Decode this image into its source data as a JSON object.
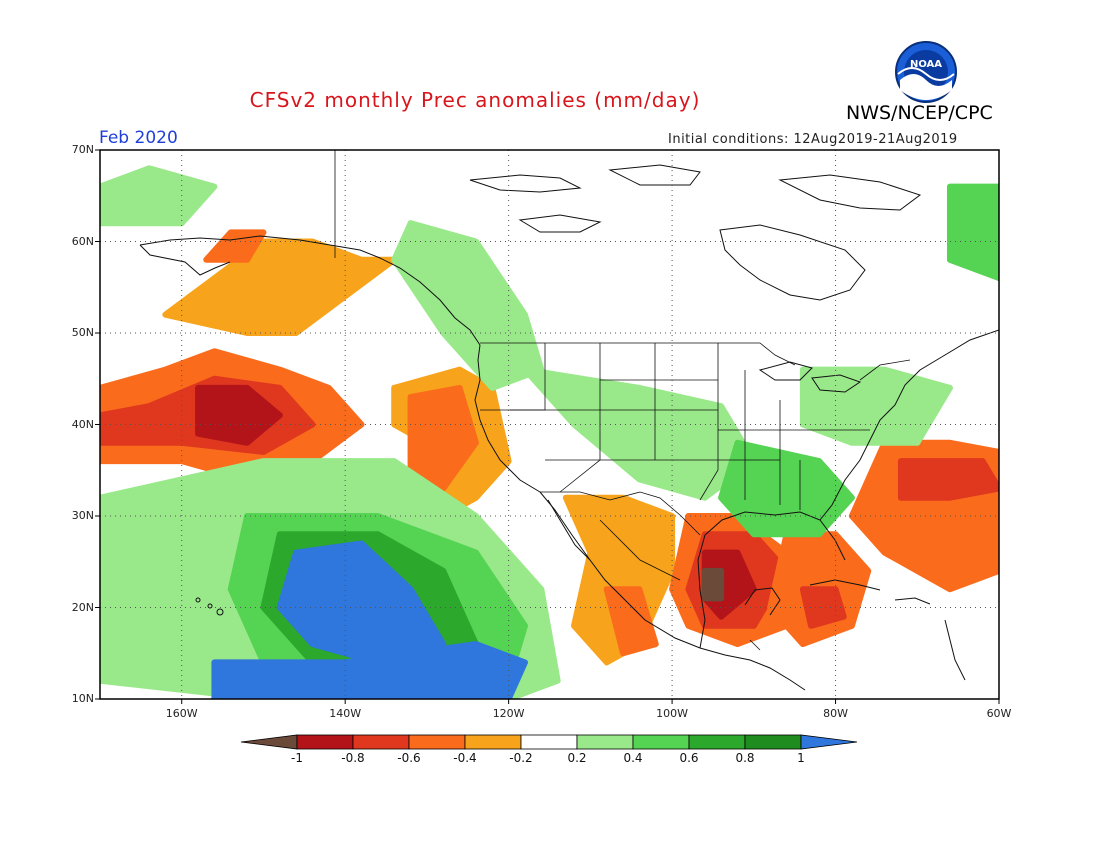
{
  "title": "CFSv2 monthly Prec anomalies (mm/day)",
  "agency": "NWS/NCEP/CPC",
  "logo_text": "NOAA",
  "month_label": "Feb 2020",
  "initial_conditions": "Initial conditions: 12Aug2019-21Aug2019",
  "lat_labels": [
    "70N",
    "60N",
    "50N",
    "40N",
    "30N",
    "20N",
    "10N"
  ],
  "lon_labels": [
    "160W",
    "140W",
    "120W",
    "100W",
    "80W",
    "60W"
  ],
  "colorbar": {
    "labels": [
      "-1",
      "-0.8",
      "-0.6",
      "-0.4",
      "-0.2",
      "0.2",
      "0.4",
      "0.6",
      "0.8",
      "1"
    ],
    "colors": [
      "#6b4a3a",
      "#b2141a",
      "#e0371f",
      "#fa6b1c",
      "#f7a41c",
      "#ffffff",
      "#99e98a",
      "#55d352",
      "#2ca82c",
      "#1e8c1e",
      "#2f76dd"
    ]
  },
  "map": {
    "lon_range": [
      -170,
      -60
    ],
    "lat_range": [
      10,
      70
    ],
    "patches": [
      {
        "bin": "-0.6",
        "color": "#fa6b1c",
        "region": "NE Pacific",
        "poly": [
          [
            -170,
            44
          ],
          [
            -162,
            46
          ],
          [
            -156,
            48
          ],
          [
            -148,
            46
          ],
          [
            -142,
            44
          ],
          [
            -138,
            40
          ],
          [
            -144,
            36
          ],
          [
            -152,
            34
          ],
          [
            -160,
            36
          ],
          [
            -170,
            36
          ]
        ]
      },
      {
        "bin": "-0.8",
        "color": "#e0371f",
        "region": "NE Pacific core",
        "poly": [
          [
            -164,
            42
          ],
          [
            -156,
            45
          ],
          [
            -148,
            44
          ],
          [
            -144,
            40
          ],
          [
            -150,
            37
          ],
          [
            -160,
            38
          ],
          [
            -170,
            38
          ],
          [
            -170,
            41
          ]
        ]
      },
      {
        "bin": "-1",
        "color": "#b2141a",
        "region": "NE Pacific center",
        "poly": [
          [
            -158,
            44
          ],
          [
            -152,
            44
          ],
          [
            -148,
            41
          ],
          [
            -152,
            38
          ],
          [
            -158,
            39
          ]
        ]
      },
      {
        "bin": "-0.4",
        "color": "#f7a41c",
        "region": "Gulf of Alaska",
        "poly": [
          [
            -162,
            52
          ],
          [
            -156,
            56
          ],
          [
            -150,
            60
          ],
          [
            -144,
            60
          ],
          [
            -138,
            58
          ],
          [
            -134,
            58
          ],
          [
            -140,
            54
          ],
          [
            -146,
            50
          ],
          [
            -152,
            50
          ]
        ]
      },
      {
        "bin": "-0.6",
        "color": "#fa6b1c",
        "region": "Alaska Peninsula",
        "poly": [
          [
            -157,
            58
          ],
          [
            -154,
            61
          ],
          [
            -150,
            61
          ],
          [
            -152,
            58
          ]
        ]
      },
      {
        "bin": "-0.4",
        "color": "#f7a41c",
        "region": "California coast",
        "poly": [
          [
            -134,
            44
          ],
          [
            -126,
            46
          ],
          [
            -122,
            44
          ],
          [
            -120,
            36
          ],
          [
            -124,
            32
          ],
          [
            -128,
            30
          ],
          [
            -134,
            32
          ],
          [
            -130,
            38
          ],
          [
            -134,
            40
          ]
        ]
      },
      {
        "bin": "-0.6",
        "color": "#fa6b1c",
        "region": "California offshore",
        "poly": [
          [
            -132,
            43
          ],
          [
            -126,
            44
          ],
          [
            -124,
            38
          ],
          [
            -128,
            33
          ],
          [
            -132,
            35
          ]
        ]
      },
      {
        "bin": "-0.4",
        "color": "#f7a41c",
        "region": "Hawaii W",
        "poly": [
          [
            -170,
            26
          ],
          [
            -158,
            28
          ],
          [
            -150,
            26
          ],
          [
            -148,
            20
          ],
          [
            -156,
            16
          ],
          [
            -166,
            14
          ],
          [
            -170,
            18
          ]
        ]
      },
      {
        "bin": "-0.6",
        "color": "#fa6b1c",
        "region": "Hawaii W core",
        "poly": [
          [
            -166,
            22
          ],
          [
            -158,
            23
          ],
          [
            -156,
            18
          ],
          [
            -164,
            18
          ]
        ]
      },
      {
        "bin": "-0.4",
        "color": "#f7a41c",
        "region": "Mexico W",
        "poly": [
          [
            -113,
            32
          ],
          [
            -106,
            32
          ],
          [
            -100,
            30
          ],
          [
            -100,
            24
          ],
          [
            -104,
            16
          ],
          [
            -108,
            14
          ],
          [
            -112,
            18
          ],
          [
            -110,
            26
          ]
        ]
      },
      {
        "bin": "-0.6",
        "color": "#fa6b1c",
        "region": "Mexico SW",
        "poly": [
          [
            -108,
            22
          ],
          [
            -104,
            22
          ],
          [
            -102,
            16
          ],
          [
            -106,
            15
          ]
        ]
      },
      {
        "bin": "-0.6",
        "color": "#fa6b1c",
        "region": "Gulf of Mexico",
        "poly": [
          [
            -98,
            30
          ],
          [
            -92,
            30
          ],
          [
            -86,
            26
          ],
          [
            -82,
            22
          ],
          [
            -86,
            18
          ],
          [
            -92,
            16
          ],
          [
            -98,
            18
          ],
          [
            -100,
            22
          ]
        ]
      },
      {
        "bin": "-0.8",
        "color": "#e0371f",
        "region": "Gulf core",
        "poly": [
          [
            -96,
            28
          ],
          [
            -90,
            28
          ],
          [
            -86,
            24
          ],
          [
            -90,
            18
          ],
          [
            -96,
            18
          ],
          [
            -98,
            22
          ]
        ]
      },
      {
        "bin": "-1",
        "color": "#b2141a",
        "region": "Gulf center",
        "poly": [
          [
            -96,
            26
          ],
          [
            -92,
            26
          ],
          [
            -90,
            22
          ],
          [
            -94,
            19
          ],
          [
            -96,
            21
          ]
        ]
      },
      {
        "bin": "less than -1",
        "color": "#6b4a3a",
        "region": "Bay of Campeche",
        "poly": [
          [
            -96,
            24
          ],
          [
            -94,
            24
          ],
          [
            -94,
            21
          ],
          [
            -96,
            21
          ]
        ]
      },
      {
        "bin": "-0.6",
        "color": "#fa6b1c",
        "region": "Caribbean",
        "poly": [
          [
            -86,
            28
          ],
          [
            -80,
            28
          ],
          [
            -76,
            24
          ],
          [
            -78,
            18
          ],
          [
            -84,
            16
          ],
          [
            -88,
            20
          ]
        ]
      },
      {
        "bin": "-0.8",
        "color": "#e0371f",
        "region": "Cuba",
        "poly": [
          [
            -84,
            22
          ],
          [
            -80,
            22
          ],
          [
            -79,
            19
          ],
          [
            -83,
            18
          ]
        ]
      },
      {
        "bin": "-0.6",
        "color": "#fa6b1c",
        "region": "W Atlantic",
        "poly": [
          [
            -74,
            38
          ],
          [
            -66,
            38
          ],
          [
            -60,
            37
          ],
          [
            -60,
            24
          ],
          [
            -66,
            22
          ],
          [
            -74,
            26
          ],
          [
            -78,
            30
          ]
        ]
      },
      {
        "bin": "-0.8",
        "color": "#e0371f",
        "region": "W Atlantic core",
        "poly": [
          [
            -72,
            36
          ],
          [
            -62,
            36
          ],
          [
            -60,
            33
          ],
          [
            -66,
            32
          ],
          [
            -72,
            32
          ]
        ]
      },
      {
        "bin": "0.4",
        "color": "#99e98a",
        "region": "Subtropical Pacific",
        "poly": [
          [
            -170,
            32
          ],
          [
            -150,
            36
          ],
          [
            -134,
            36
          ],
          [
            -124,
            30
          ],
          [
            -116,
            22
          ],
          [
            -114,
            12
          ],
          [
            -120,
            10
          ],
          [
            -150,
            10
          ],
          [
            -170,
            12
          ]
        ]
      },
      {
        "bin": "0.6",
        "color": "#55d352",
        "region": "E Pacific green",
        "poly": [
          [
            -152,
            30
          ],
          [
            -136,
            30
          ],
          [
            -124,
            26
          ],
          [
            -118,
            18
          ],
          [
            -120,
            12
          ],
          [
            -140,
            12
          ],
          [
            -150,
            14
          ],
          [
            -154,
            22
          ]
        ]
      },
      {
        "bin": "0.8",
        "color": "#2ca82c",
        "region": "E Pacific core",
        "poly": [
          [
            -148,
            28
          ],
          [
            -136,
            28
          ],
          [
            -128,
            24
          ],
          [
            -124,
            16
          ],
          [
            -132,
            12
          ],
          [
            -144,
            14
          ],
          [
            -150,
            20
          ]
        ]
      },
      {
        "bin": "1",
        "color": "#2f76dd",
        "region": "E Pacific blue",
        "poly": [
          [
            -146,
            26
          ],
          [
            -138,
            27
          ],
          [
            -132,
            22
          ],
          [
            -128,
            16
          ],
          [
            -136,
            14
          ],
          [
            -144,
            16
          ],
          [
            -148,
            20
          ]
        ]
      },
      {
        "bin": "1",
        "color": "#2f76dd",
        "region": "S Pacific blue strip",
        "poly": [
          [
            -156,
            14
          ],
          [
            -140,
            14
          ],
          [
            -124,
            16
          ],
          [
            -118,
            14
          ],
          [
            -120,
            10
          ],
          [
            -156,
            10
          ]
        ]
      },
      {
        "bin": "0.4",
        "color": "#99e98a",
        "region": "W Canada",
        "poly": [
          [
            -132,
            62
          ],
          [
            -124,
            60
          ],
          [
            -118,
            52
          ],
          [
            -116,
            46
          ],
          [
            -122,
            44
          ],
          [
            -128,
            50
          ],
          [
            -134,
            58
          ]
        ]
      },
      {
        "bin": "0.4",
        "color": "#99e98a",
        "region": "Central US",
        "poly": [
          [
            -118,
            46
          ],
          [
            -104,
            44
          ],
          [
            -94,
            42
          ],
          [
            -90,
            36
          ],
          [
            -96,
            32
          ],
          [
            -104,
            34
          ],
          [
            -112,
            40
          ]
        ]
      },
      {
        "bin": "0.6",
        "color": "#55d352",
        "region": "SE US",
        "poly": [
          [
            -92,
            38
          ],
          [
            -82,
            36
          ],
          [
            -78,
            32
          ],
          [
            -82,
            28
          ],
          [
            -90,
            28
          ],
          [
            -94,
            32
          ]
        ]
      },
      {
        "bin": "0.4",
        "color": "#99e98a",
        "region": "NE US",
        "poly": [
          [
            -84,
            46
          ],
          [
            -74,
            46
          ],
          [
            -66,
            44
          ],
          [
            -70,
            38
          ],
          [
            -78,
            38
          ],
          [
            -84,
            40
          ]
        ]
      },
      {
        "bin": "0.6",
        "color": "#55d352",
        "region": "Labrador",
        "poly": [
          [
            -66,
            66
          ],
          [
            -60,
            66
          ],
          [
            -60,
            56
          ],
          [
            -66,
            58
          ]
        ]
      },
      {
        "bin": "0.4",
        "color": "#99e98a",
        "region": "Bering",
        "poly": [
          [
            -170,
            66
          ],
          [
            -164,
            68
          ],
          [
            -156,
            66
          ],
          [
            -160,
            62
          ],
          [
            -170,
            62
          ]
        ]
      }
    ]
  }
}
